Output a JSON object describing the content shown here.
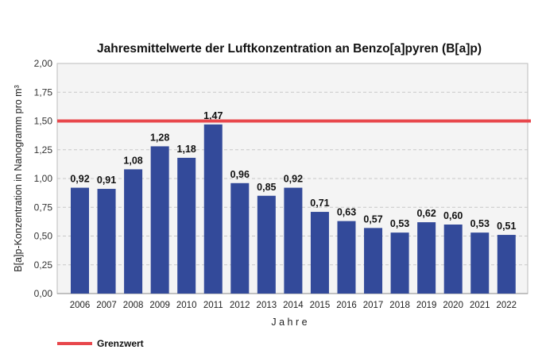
{
  "chart_data": {
    "type": "bar",
    "title": "Jahresmittelwerte der Luftkonzentration an Benzo[a]pyren (B[a]p)",
    "xlabel": "J a h r e",
    "ylabel": "B[a]p-Konzentration in Nanogramm pro m³",
    "ylim": [
      0,
      2
    ],
    "yticks": [
      "0,00",
      "0,25",
      "0,50",
      "0,75",
      "1,00",
      "1,25",
      "1,50",
      "1,75",
      "2,00"
    ],
    "grid": true,
    "categories": [
      "2006",
      "2007",
      "2008",
      "2009",
      "2010",
      "2011",
      "2012",
      "2013",
      "2014",
      "2015",
      "2016",
      "2017",
      "2018",
      "2019",
      "2020",
      "2021",
      "2022"
    ],
    "values": [
      0.92,
      0.91,
      1.08,
      1.28,
      1.18,
      1.47,
      0.96,
      0.85,
      0.92,
      0.71,
      0.63,
      0.57,
      0.53,
      0.62,
      0.6,
      0.53,
      0.51
    ],
    "data_labels": [
      "0,92",
      "0,91",
      "1,08",
      "1,28",
      "1,18",
      "1,47",
      "0,96",
      "0,85",
      "0,92",
      "0,71",
      "0,63",
      "0,57",
      "0,53",
      "0,62",
      "0,60",
      "0,53",
      "0,51"
    ],
    "reference_line": {
      "name": "Grenzwert",
      "value": 1.5,
      "color": "#e8474c"
    },
    "bar_color": "#334a9a",
    "plot_background": "#f4f4f4",
    "legend": {
      "position": "bottom-left",
      "entries": [
        "Grenzwert"
      ]
    }
  }
}
